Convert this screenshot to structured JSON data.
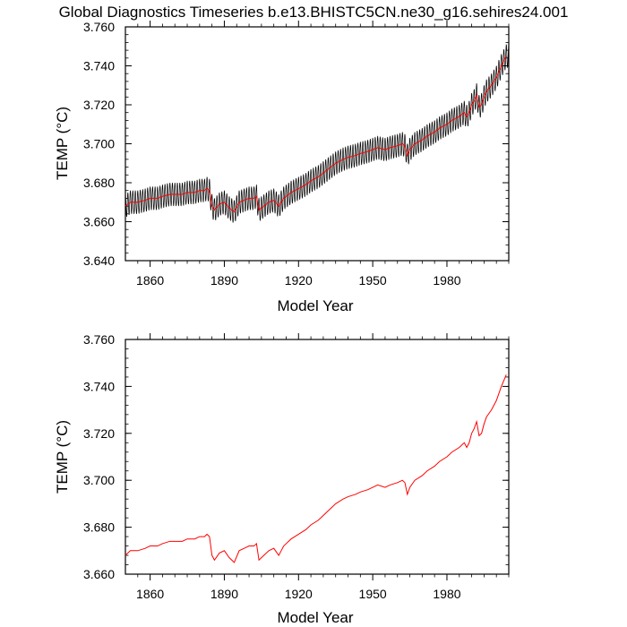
{
  "title": "Global Diagnostics Timeseries b.e13.BHISTC5CN.ne30_g16.sehires24.001",
  "chart_data": [
    {
      "type": "line",
      "xlabel": "Model Year",
      "ylabel": "TEMP (°C)",
      "xlim": [
        1850,
        2005
      ],
      "ylim": [
        3.64,
        3.76
      ],
      "x_ticks": [
        1860,
        1890,
        1920,
        1950,
        1980
      ],
      "x_tick_labels": [
        "1860",
        "1890",
        "1920",
        "1950",
        "1980"
      ],
      "y_ticks": [
        3.64,
        3.66,
        3.68,
        3.7,
        3.72,
        3.74,
        3.76
      ],
      "y_tick_labels": [
        "3.640",
        "3.660",
        "3.680",
        "3.700",
        "3.720",
        "3.740",
        "3.760"
      ],
      "grid": false,
      "colors": {
        "monthly": "#000000",
        "annual": "#ff0000"
      },
      "monthly_seasonal_amplitude": 0.006,
      "series": [
        {
          "key": "monthly",
          "style": "monthly oscillation around annual mean",
          "x": [
            1850,
            1852,
            1855,
            1858,
            1860,
            1863,
            1865,
            1868,
            1870,
            1873,
            1875,
            1878,
            1880,
            1882,
            1883,
            1884,
            1885,
            1886,
            1888,
            1890,
            1892,
            1894,
            1896,
            1898,
            1900,
            1902,
            1903,
            1904,
            1905,
            1906,
            1908,
            1910,
            1912,
            1913,
            1914,
            1915,
            1917,
            1920,
            1923,
            1925,
            1928,
            1930,
            1933,
            1935,
            1938,
            1940,
            1943,
            1945,
            1948,
            1950,
            1952,
            1955,
            1957,
            1960,
            1962,
            1963,
            1964,
            1965,
            1967,
            1970,
            1972,
            1975,
            1977,
            1980,
            1982,
            1985,
            1987,
            1988,
            1989,
            1990,
            1991,
            1992,
            1993,
            1994,
            1995,
            1996,
            1998,
            2000,
            2002,
            2004
          ],
          "values": [
            3.668,
            3.67,
            3.67,
            3.671,
            3.672,
            3.672,
            3.673,
            3.674,
            3.674,
            3.674,
            3.675,
            3.675,
            3.676,
            3.676,
            3.677,
            3.676,
            3.668,
            3.666,
            3.669,
            3.67,
            3.667,
            3.665,
            3.67,
            3.671,
            3.672,
            3.672,
            3.673,
            3.666,
            3.667,
            3.668,
            3.67,
            3.671,
            3.668,
            3.67,
            3.672,
            3.673,
            3.675,
            3.677,
            3.679,
            3.681,
            3.683,
            3.685,
            3.688,
            3.69,
            3.692,
            3.693,
            3.694,
            3.695,
            3.696,
            3.697,
            3.698,
            3.697,
            3.698,
            3.699,
            3.7,
            3.699,
            3.694,
            3.697,
            3.7,
            3.702,
            3.704,
            3.706,
            3.708,
            3.71,
            3.712,
            3.714,
            3.716,
            3.714,
            3.716,
            3.72,
            3.722,
            3.725,
            3.719,
            3.72,
            3.724,
            3.727,
            3.73,
            3.734,
            3.74,
            3.745
          ]
        },
        {
          "key": "annual",
          "x": [
            1850,
            1852,
            1855,
            1858,
            1860,
            1863,
            1865,
            1868,
            1870,
            1873,
            1875,
            1878,
            1880,
            1882,
            1883,
            1884,
            1885,
            1886,
            1888,
            1890,
            1892,
            1894,
            1896,
            1898,
            1900,
            1902,
            1903,
            1904,
            1905,
            1906,
            1908,
            1910,
            1912,
            1913,
            1914,
            1915,
            1917,
            1920,
            1923,
            1925,
            1928,
            1930,
            1933,
            1935,
            1938,
            1940,
            1943,
            1945,
            1948,
            1950,
            1952,
            1955,
            1957,
            1960,
            1962,
            1963,
            1964,
            1965,
            1967,
            1970,
            1972,
            1975,
            1977,
            1980,
            1982,
            1985,
            1987,
            1988,
            1989,
            1990,
            1991,
            1992,
            1993,
            1994,
            1995,
            1996,
            1998,
            2000,
            2002,
            2004
          ],
          "values": [
            3.668,
            3.67,
            3.67,
            3.671,
            3.672,
            3.672,
            3.673,
            3.674,
            3.674,
            3.674,
            3.675,
            3.675,
            3.676,
            3.676,
            3.677,
            3.676,
            3.668,
            3.666,
            3.669,
            3.67,
            3.667,
            3.665,
            3.67,
            3.671,
            3.672,
            3.672,
            3.673,
            3.666,
            3.667,
            3.668,
            3.67,
            3.671,
            3.668,
            3.67,
            3.672,
            3.673,
            3.675,
            3.677,
            3.679,
            3.681,
            3.683,
            3.685,
            3.688,
            3.69,
            3.692,
            3.693,
            3.694,
            3.695,
            3.696,
            3.697,
            3.698,
            3.697,
            3.698,
            3.699,
            3.7,
            3.699,
            3.694,
            3.697,
            3.7,
            3.702,
            3.704,
            3.706,
            3.708,
            3.71,
            3.712,
            3.714,
            3.716,
            3.714,
            3.716,
            3.72,
            3.722,
            3.725,
            3.719,
            3.72,
            3.724,
            3.727,
            3.73,
            3.734,
            3.74,
            3.745
          ]
        }
      ]
    },
    {
      "type": "line",
      "xlabel": "Model Year",
      "ylabel": "TEMP (°C)",
      "xlim": [
        1850,
        2005
      ],
      "ylim": [
        3.66,
        3.76
      ],
      "x_ticks": [
        1860,
        1890,
        1920,
        1950,
        1980
      ],
      "x_tick_labels": [
        "1860",
        "1890",
        "1920",
        "1950",
        "1980"
      ],
      "y_ticks": [
        3.66,
        3.68,
        3.7,
        3.72,
        3.74,
        3.76
      ],
      "y_tick_labels": [
        "3.660",
        "3.680",
        "3.700",
        "3.720",
        "3.740",
        "3.760"
      ],
      "grid": false,
      "colors": {
        "annual": "#ff0000"
      },
      "series": [
        {
          "key": "annual",
          "x": [
            1850,
            1852,
            1855,
            1858,
            1860,
            1863,
            1865,
            1868,
            1870,
            1873,
            1875,
            1878,
            1880,
            1882,
            1883,
            1884,
            1885,
            1886,
            1888,
            1890,
            1892,
            1894,
            1896,
            1898,
            1900,
            1902,
            1903,
            1904,
            1905,
            1906,
            1908,
            1910,
            1912,
            1913,
            1914,
            1915,
            1917,
            1920,
            1923,
            1925,
            1928,
            1930,
            1933,
            1935,
            1938,
            1940,
            1943,
            1945,
            1948,
            1950,
            1952,
            1955,
            1957,
            1960,
            1962,
            1963,
            1964,
            1965,
            1967,
            1970,
            1972,
            1975,
            1977,
            1980,
            1982,
            1985,
            1987,
            1988,
            1989,
            1990,
            1991,
            1992,
            1993,
            1994,
            1995,
            1996,
            1998,
            2000,
            2002,
            2004
          ],
          "values": [
            3.668,
            3.67,
            3.67,
            3.671,
            3.672,
            3.672,
            3.673,
            3.674,
            3.674,
            3.674,
            3.675,
            3.675,
            3.676,
            3.676,
            3.677,
            3.676,
            3.668,
            3.666,
            3.669,
            3.67,
            3.667,
            3.665,
            3.67,
            3.671,
            3.672,
            3.672,
            3.673,
            3.666,
            3.667,
            3.668,
            3.67,
            3.671,
            3.668,
            3.67,
            3.672,
            3.673,
            3.675,
            3.677,
            3.679,
            3.681,
            3.683,
            3.685,
            3.688,
            3.69,
            3.692,
            3.693,
            3.694,
            3.695,
            3.696,
            3.697,
            3.698,
            3.697,
            3.698,
            3.699,
            3.7,
            3.699,
            3.694,
            3.697,
            3.7,
            3.702,
            3.704,
            3.706,
            3.708,
            3.71,
            3.712,
            3.714,
            3.716,
            3.714,
            3.716,
            3.72,
            3.722,
            3.725,
            3.719,
            3.72,
            3.724,
            3.727,
            3.73,
            3.734,
            3.74,
            3.745
          ]
        }
      ]
    }
  ]
}
